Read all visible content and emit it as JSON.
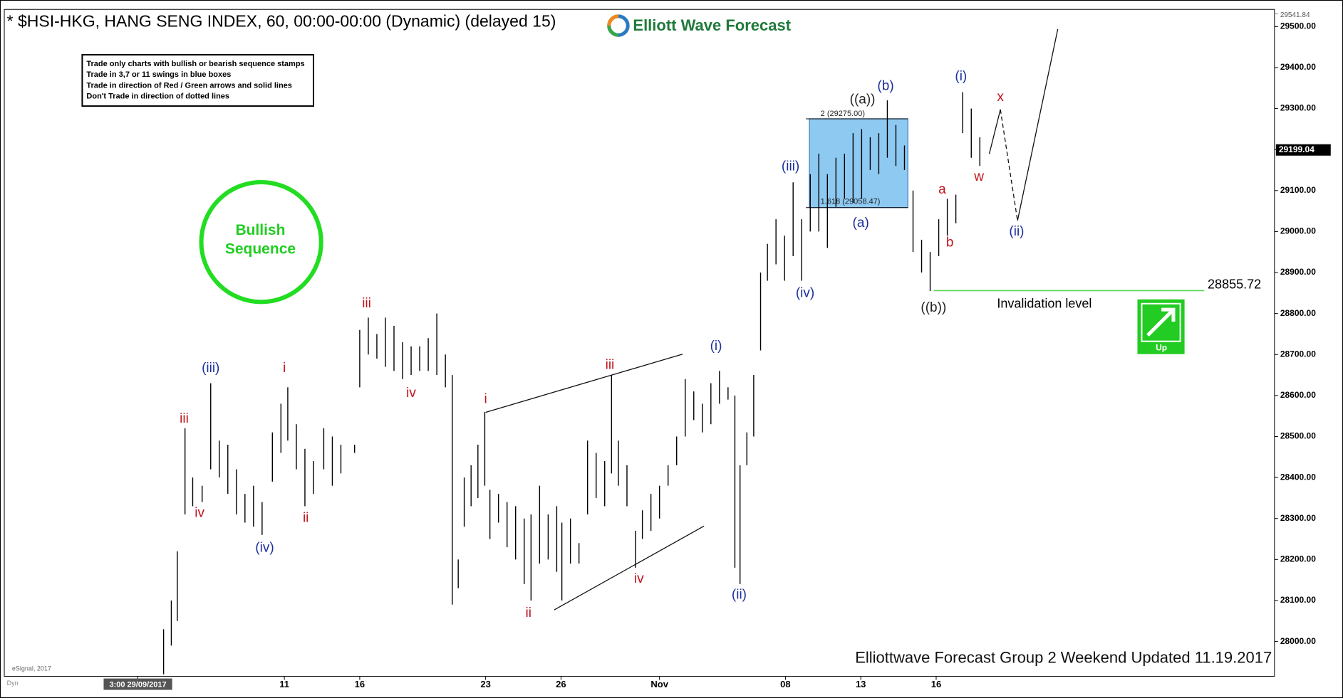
{
  "title": "* $HSI-HKG, HANG SENG INDEX, 60, 00:00-00:00 (Dynamic) (delayed 15)",
  "logo": "Elliott Wave Forecast",
  "rules": [
    "Trade only charts with bullish or bearish sequence stamps",
    "Trade in 3,7 or 11 swings in blue boxes",
    "Trade in direction of Red / Green arrows and solid lines",
    "Don't Trade in direction of dotted lines"
  ],
  "badge": [
    "Bullish",
    "Sequence"
  ],
  "trend_icon": "Up",
  "footer": "Elliottwave Forecast Group 2 Weekend Updated 11.19.2017",
  "watermark": "eSignal, 2017",
  "corner": "Dyn",
  "chart_data": {
    "type": "ohlc",
    "series": [
      {
        "color": "#000000",
        "x": [
          19.1,
          20.0,
          20.7,
          21.6,
          22.5,
          23.6,
          24.6,
          25.6,
          26.6,
          27.6,
          28.6,
          29.6,
          30.6,
          31.8,
          32.8,
          33.6,
          34.6,
          35.6,
          36.6,
          37.8,
          38.8,
          39.8,
          41.4,
          42.0,
          43.0,
          44.0,
          45.0,
          46.0,
          47.0,
          48.0,
          49.0,
          50.0,
          51.0,
          52.0,
          52.8,
          53.5,
          54.2,
          55.0,
          55.8,
          56.6,
          57.2,
          58.2,
          59.2,
          60.2,
          61.2,
          62.0,
          63.0,
          64.0,
          65.0,
          65.6,
          66.6,
          67.6,
          68.6,
          69.6,
          70.6,
          71.4,
          72.2,
          73.2,
          74.2,
          75.0,
          76.0,
          77.0,
          78.0,
          79.0,
          80.0,
          81.0,
          82.0,
          83.0,
          84.0,
          85.0,
          85.8,
          86.4,
          87.2,
          88.0,
          88.8,
          89.6,
          90.6,
          91.6,
          92.6,
          93.6,
          94.6,
          95.6,
          96.6,
          97.6,
          98.6,
          99.6,
          100.6,
          101.6,
          102.6,
          103.6,
          104.6,
          105.6,
          106.6,
          107.6,
          108.6,
          109.6,
          110.6,
          111.6,
          112.4,
          113.4,
          114.4
        ],
        "high": [
          28030,
          28100,
          28220,
          28520,
          28400,
          28380,
          28630,
          28490,
          28480,
          28420,
          28360,
          28380,
          28340,
          28510,
          28580,
          28620,
          28530,
          28470,
          28440,
          28520,
          28500,
          28480,
          28480,
          28760,
          28790,
          28750,
          28790,
          28770,
          28730,
          28720,
          28720,
          28740,
          28800,
          28700,
          28650,
          28200,
          28400,
          28430,
          28480,
          28560,
          28370,
          28360,
          28340,
          28330,
          28300,
          28310,
          28380,
          28310,
          28330,
          28290,
          28300,
          28240,
          28490,
          28460,
          28440,
          28650,
          28490,
          28430,
          28270,
          28320,
          28360,
          28380,
          28430,
          28500,
          28640,
          28610,
          28580,
          28630,
          28660,
          28620,
          28600,
          28430,
          28510,
          28650,
          28900,
          28970,
          29030,
          28990,
          29120,
          29030,
          29140,
          29190,
          29140,
          29180,
          29190,
          29240,
          29250,
          29230,
          29240,
          29320,
          29260,
          29210,
          29100,
          28980,
          28950,
          29030,
          29080,
          29090,
          29340,
          29300,
          29230
        ],
        "low": [
          27920,
          27990,
          28050,
          28310,
          28330,
          28340,
          28420,
          28400,
          28360,
          28310,
          28290,
          28280,
          28260,
          28390,
          28460,
          28490,
          28420,
          28330,
          28360,
          28420,
          28380,
          28410,
          28460,
          28620,
          28700,
          28690,
          28670,
          28660,
          28640,
          28650,
          28660,
          28660,
          28650,
          28620,
          28090,
          28130,
          28280,
          28330,
          28350,
          28380,
          28250,
          28290,
          28230,
          28200,
          28140,
          28100,
          28190,
          28200,
          28170,
          28100,
          28190,
          28190,
          28310,
          28350,
          28330,
          28410,
          28380,
          28330,
          28180,
          28250,
          28270,
          28300,
          28380,
          28430,
          28500,
          28540,
          28510,
          28530,
          28580,
          28590,
          28180,
          28140,
          28430,
          28500,
          28710,
          28880,
          28920,
          28880,
          28940,
          28880,
          29000,
          29000,
          28960,
          29060,
          29080,
          29070,
          29080,
          29150,
          29140,
          29180,
          29160,
          29150,
          28950,
          28900,
          28855,
          28940,
          28990,
          29020,
          29240,
          29180,
          29160
        ]
      }
    ],
    "xlim": [
      0.5,
      148.8
    ],
    "xticks": [
      {
        "value": 16.1,
        "label": "3:00 29/09/2017"
      },
      {
        "value": 33.2,
        "label": "11"
      },
      {
        "value": 42.0,
        "label": "16"
      },
      {
        "value": 56.7,
        "label": "23"
      },
      {
        "value": 65.5,
        "label": "26"
      },
      {
        "value": 77.0,
        "label": "Nov"
      },
      {
        "value": 91.7,
        "label": "08"
      },
      {
        "value": 100.5,
        "label": "13"
      },
      {
        "value": 109.3,
        "label": "16"
      }
    ],
    "ylim": [
      27915,
      29541.84
    ],
    "yticks": [
      {
        "value": 28000,
        "label": "28000.00"
      },
      {
        "value": 28100,
        "label": "28100.00"
      },
      {
        "value": 28200,
        "label": "28200.00"
      },
      {
        "value": 28300,
        "label": "28300.00"
      },
      {
        "value": 28400,
        "label": "28400.00"
      },
      {
        "value": 28500,
        "label": "28500.00"
      },
      {
        "value": 28600,
        "label": "28600.00"
      },
      {
        "value": 28700,
        "label": "28700.00"
      },
      {
        "value": 28800,
        "label": "28800.00"
      },
      {
        "value": 28900,
        "label": "28900.00"
      },
      {
        "value": 29000,
        "label": "29000.00"
      },
      {
        "value": 29100,
        "label": "29100.00"
      },
      {
        "value": 29200,
        "label": "29200.00"
      },
      {
        "value": 29300,
        "label": "29300.00"
      },
      {
        "value": 29400,
        "label": "29400.00"
      },
      {
        "value": 29500,
        "label": "29500.00"
      }
    ],
    "high_label": {
      "value": 29541.84,
      "label": "29541.84"
    },
    "last_price": {
      "value": 29199.04,
      "label": "29199.04"
    },
    "invalidation": {
      "value": 28855.72,
      "label": "28855.72",
      "text": "Invalidation level",
      "color": "#4cd64c"
    },
    "fib_box": {
      "top": {
        "value": 29275,
        "label": "2 (29275.00)"
      },
      "bottom": {
        "value": 29058.47,
        "label": "1.618 (29058.47)"
      },
      "color": "#8ec9f2"
    },
    "annotations": [
      {
        "text": "iii",
        "color": "#c0141c"
      },
      {
        "text": "iv",
        "color": "#c0141c"
      },
      {
        "text": "(iii)",
        "color": "#1c2f9c"
      },
      {
        "text": "(iv)",
        "color": "#1c2f9c"
      },
      {
        "text": "i",
        "color": "#c0141c"
      },
      {
        "text": "ii",
        "color": "#c0141c"
      },
      {
        "text": "iii",
        "color": "#c0141c"
      },
      {
        "text": "iv",
        "color": "#c0141c"
      },
      {
        "text": "i",
        "color": "#c0141c"
      },
      {
        "text": "ii",
        "color": "#c0141c"
      },
      {
        "text": "iii",
        "color": "#c0141c"
      },
      {
        "text": "iv",
        "color": "#c0141c"
      },
      {
        "text": "(i)",
        "color": "#1c2f9c"
      },
      {
        "text": "(ii)",
        "color": "#1c2f9c"
      },
      {
        "text": "(iii)",
        "color": "#1c2f9c"
      },
      {
        "text": "(iv)",
        "color": "#1c2f9c"
      },
      {
        "text": "((a))",
        "color": "#222222"
      },
      {
        "text": "(b)",
        "color": "#1c2f9c"
      },
      {
        "text": "(a)",
        "color": "#1c2f9c"
      },
      {
        "text": "((b))",
        "color": "#222222"
      },
      {
        "text": "a",
        "color": "#c0141c"
      },
      {
        "text": "b",
        "color": "#c0141c"
      },
      {
        "text": "(i)",
        "color": "#1c2f9c"
      },
      {
        "text": "x",
        "color": "#c0141c"
      },
      {
        "text": "w",
        "color": "#c0141c"
      },
      {
        "text": "(ii)",
        "color": "#1c2f9c"
      }
    ]
  }
}
